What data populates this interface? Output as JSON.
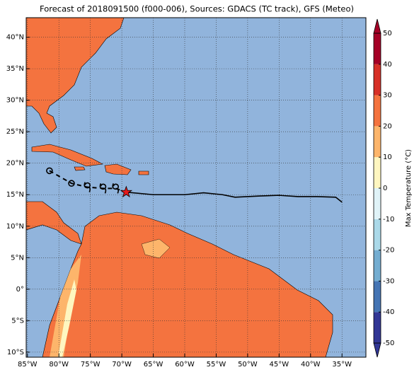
{
  "title": "Forecast of 2018091500 (f000-006), Sources: GDACS (TC track), GFS (Meteo)",
  "map": {
    "xlim": [
      -85.2,
      -31.2
    ],
    "ylim": [
      -10.8,
      43.1
    ],
    "xticks": [
      {
        "value": -85,
        "label": "85°W"
      },
      {
        "value": -80,
        "label": "80°W"
      },
      {
        "value": -75,
        "label": "75°W"
      },
      {
        "value": -70,
        "label": "70°W"
      },
      {
        "value": -65,
        "label": "65°W"
      },
      {
        "value": -60,
        "label": "60°W"
      },
      {
        "value": -55,
        "label": "55°W"
      },
      {
        "value": -50,
        "label": "50°W"
      },
      {
        "value": -45,
        "label": "45°W"
      },
      {
        "value": -40,
        "label": "40°W"
      },
      {
        "value": -35,
        "label": "35°W"
      }
    ],
    "yticks": [
      {
        "value": 40,
        "label": "40°N"
      },
      {
        "value": 35,
        "label": "35°N"
      },
      {
        "value": 30,
        "label": "30°N"
      },
      {
        "value": 25,
        "label": "25°N"
      },
      {
        "value": 20,
        "label": "20°N"
      },
      {
        "value": 15,
        "label": "15°N"
      },
      {
        "value": 10,
        "label": "10°N"
      },
      {
        "value": 5,
        "label": "5°N"
      },
      {
        "value": 0,
        "label": "0°"
      },
      {
        "value": -5,
        "label": "5°S"
      },
      {
        "value": -10,
        "label": "10°S"
      }
    ],
    "grid": true,
    "track": {
      "lon": [
        -69.3,
        -65,
        -60,
        -57,
        -54,
        -52,
        -48,
        -45,
        -42,
        -39,
        -36,
        -35
      ],
      "lat": [
        15.4,
        15.0,
        15.0,
        15.3,
        15.0,
        14.6,
        14.8,
        14.9,
        14.7,
        14.7,
        14.6,
        13.8
      ]
    },
    "forecast": {
      "lon": [
        -81.5,
        -78,
        -75.5,
        -73,
        -71
      ],
      "lat": [
        18.8,
        16.8,
        16.2,
        16.0,
        16.0
      ]
    },
    "current": {
      "lon": -69.3,
      "lat": 15.4
    }
  },
  "colorbar": {
    "label": "Max Temperature (°C)",
    "lim": [
      -50,
      50
    ],
    "ticks": [
      -50,
      -40,
      -30,
      -20,
      -10,
      0,
      10,
      20,
      30,
      40,
      50
    ],
    "colors": [
      "#313695",
      "#4575b4",
      "#74add1",
      "#abd9e9",
      "#e0f3f8",
      "#fef6c0",
      "#fdb56b",
      "#f4733f",
      "#d73027",
      "#a50026"
    ]
  }
}
